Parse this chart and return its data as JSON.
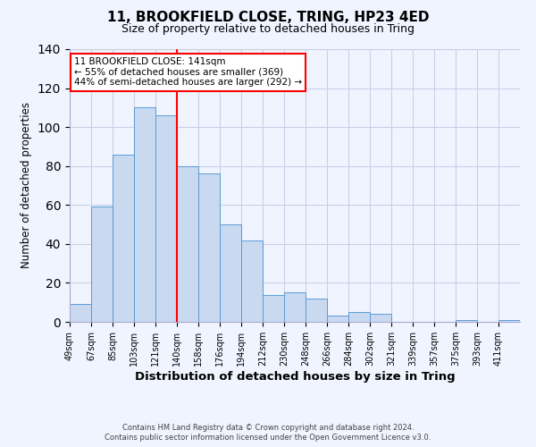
{
  "title": "11, BROOKFIELD CLOSE, TRING, HP23 4ED",
  "subtitle": "Size of property relative to detached houses in Tring",
  "xlabel": "Distribution of detached houses by size in Tring",
  "ylabel": "Number of detached properties",
  "footer_line1": "Contains HM Land Registry data © Crown copyright and database right 2024.",
  "footer_line2": "Contains public sector information licensed under the Open Government Licence v3.0.",
  "bar_labels": [
    "49sqm",
    "67sqm",
    "85sqm",
    "103sqm",
    "121sqm",
    "140sqm",
    "158sqm",
    "176sqm",
    "194sqm",
    "212sqm",
    "230sqm",
    "248sqm",
    "266sqm",
    "284sqm",
    "302sqm",
    "321sqm",
    "339sqm",
    "357sqm",
    "375sqm",
    "393sqm",
    "411sqm"
  ],
  "bar_values": [
    9,
    59,
    86,
    110,
    106,
    80,
    76,
    50,
    42,
    14,
    15,
    12,
    3,
    5,
    4,
    0,
    0,
    0,
    1,
    0,
    1
  ],
  "bar_color": "#c9d9f0",
  "bar_edge_color": "#5b9bd5",
  "vline_x_index": 5,
  "vline_color": "red",
  "annotation_text": "11 BROOKFIELD CLOSE: 141sqm\n← 55% of detached houses are smaller (369)\n44% of semi-detached houses are larger (292) →",
  "annotation_box_color": "white",
  "annotation_box_edge": "red",
  "ylim": [
    0,
    140
  ],
  "yticks": [
    0,
    20,
    40,
    60,
    80,
    100,
    120,
    140
  ],
  "background_color": "#f0f4ff",
  "grid_color": "#c8d0e8",
  "title_fontsize": 11,
  "subtitle_fontsize": 9,
  "xlabel_fontsize": 9.5,
  "ylabel_fontsize": 8.5
}
